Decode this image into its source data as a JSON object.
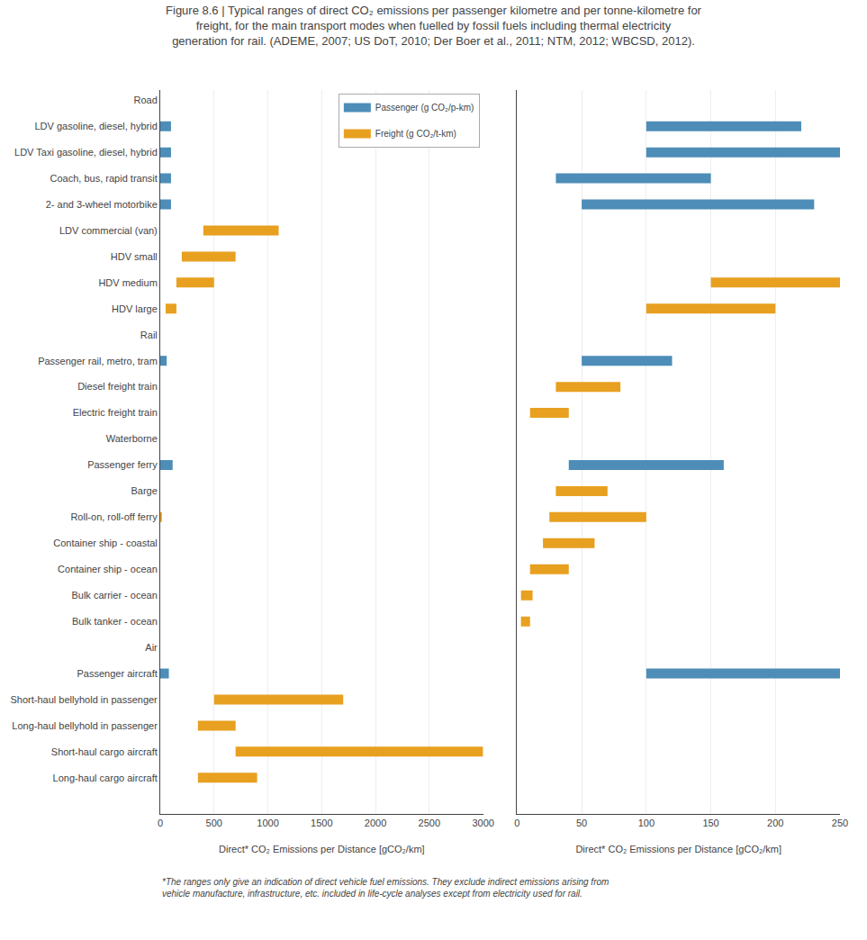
{
  "chart_data": [
    {
      "type": "bar",
      "orientation": "horizontal",
      "title": "Figure 8.6 | Typical ranges of direct CO₂ emissions per passenger kilometre and per tonne-kilometre for freight, for the main transport modes when fuelled by fossil fuels including thermal electricity generation for rail. (ADEME, 2007; US DoT, 2010; Der Boer et al., 2011; NTM, 2012; WBCSD, 2012).",
      "annotations": [
        "*The ranges only give an indication of direct vehicle fuel emissions. They exclude indirect emissions arising from vehicle manufacture, infrastructure, etc. included in life-cycle analyses except from electricity used for rail."
      ],
      "categories": [
        "Road",
        "LDV gasoline, diesel, hybrid",
        "LDV Taxi gasoline, diesel, hybrid",
        "Coach, bus, rapid transit",
        "2- and 3-wheel motorbike",
        "LDV commercial (van)",
        "HDV small",
        "HDV medium",
        "HDV large",
        "Rail",
        "Passenger rail, metro, tram",
        "Diesel freight train",
        "Electric freight train",
        "Waterborne",
        "Passenger ferry",
        "Barge",
        "Roll-on, roll-off ferry",
        "Container ship - coastal",
        "Container ship - ocean",
        "Bulk carrier - ocean",
        "Bulk tanker - ocean",
        "Air",
        "Passenger aircraft",
        "Short-haul bellyhold in passenger",
        "Long-haul bellyhold in passenger",
        "Short-haul cargo aircraft",
        "Long-haul cargo aircraft"
      ],
      "x_label": "Direct* CO₂ Emissions per Distance [gCO₂/km]",
      "xlim": [
        0,
        3000
      ],
      "xticks": [
        0,
        500,
        1000,
        1500,
        2000,
        2500,
        3000
      ],
      "grid": true,
      "legend": "upper right",
      "series": [
        {
          "name": "Passenger (g CO₂/p-km)",
          "color": "#4d8db8",
          "values": [
            null,
            [
              0,
              100
            ],
            [
              0,
              100
            ],
            [
              0,
              100
            ],
            [
              0,
              100
            ],
            null,
            null,
            null,
            null,
            null,
            [
              0,
              60
            ],
            null,
            null,
            null,
            [
              0,
              115
            ],
            null,
            null,
            null,
            null,
            null,
            null,
            null,
            [
              0,
              80
            ],
            null,
            null,
            null,
            null
          ]
        },
        {
          "name": "Freight (g CO₂/t-km)",
          "color": "#e8a020",
          "values": [
            null,
            null,
            null,
            null,
            null,
            [
              400,
              1100
            ],
            [
              200,
              700
            ],
            [
              150,
              500
            ],
            [
              50,
              150
            ],
            null,
            null,
            null,
            null,
            null,
            null,
            null,
            [
              0,
              15
            ],
            null,
            null,
            null,
            null,
            null,
            null,
            [
              500,
              1700
            ],
            [
              350,
              700
            ],
            [
              700,
              3000
            ],
            [
              350,
              900
            ]
          ]
        }
      ]
    },
    {
      "type": "bar",
      "orientation": "horizontal",
      "categories": [
        "Road",
        "LDV gasoline, diesel, hybrid",
        "LDV Taxi gasoline, diesel, hybrid",
        "Coach, bus, rapid transit",
        "2- and 3-wheel motorbike",
        "LDV commercial (van)",
        "HDV small",
        "HDV medium",
        "HDV large",
        "Rail",
        "Passenger rail, metro, tram",
        "Diesel freight train",
        "Electric freight train",
        "Waterborne",
        "Passenger ferry",
        "Barge",
        "Roll-on, roll-off ferry",
        "Container ship - coastal",
        "Container ship - ocean",
        "Bulk carrier - ocean",
        "Bulk tanker - ocean",
        "Air",
        "Passenger aircraft",
        "Short-haul bellyhold in passenger",
        "Long-haul bellyhold in passenger",
        "Short-haul cargo aircraft",
        "Long-haul cargo aircraft"
      ],
      "x_label": "Direct* CO₂ Emissions per Distance [gCO₂/km]",
      "xlim": [
        0,
        250
      ],
      "xticks": [
        0,
        50,
        100,
        150,
        200,
        250
      ],
      "grid": true,
      "tick_labels": "x",
      "series": [
        {
          "name": "Passenger (g CO₂/p-km)",
          "color": "#4d8db8",
          "values": [
            null,
            [
              100,
              220
            ],
            [
              100,
              250
            ],
            [
              30,
              150
            ],
            [
              50,
              230
            ],
            null,
            null,
            null,
            null,
            null,
            [
              50,
              120
            ],
            null,
            null,
            null,
            [
              40,
              160
            ],
            null,
            null,
            null,
            null,
            null,
            null,
            null,
            [
              100,
              250
            ],
            null,
            null,
            null,
            null
          ]
        },
        {
          "name": "Freight (g CO₂/t-km)",
          "color": "#e8a020",
          "values": [
            null,
            null,
            null,
            null,
            null,
            null,
            null,
            [
              150,
              250
            ],
            [
              100,
              200
            ],
            null,
            null,
            [
              30,
              80
            ],
            [
              10,
              40
            ],
            null,
            null,
            [
              30,
              70
            ],
            [
              25,
              100
            ],
            [
              20,
              60
            ],
            [
              10,
              40
            ],
            [
              3,
              12
            ],
            [
              3,
              10
            ],
            null,
            null,
            null,
            null,
            null,
            null
          ]
        }
      ]
    }
  ]
}
